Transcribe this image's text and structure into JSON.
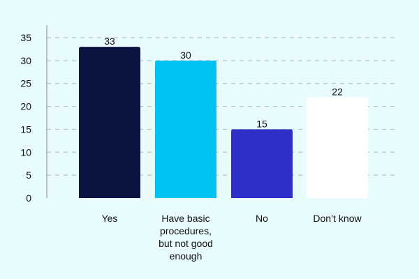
{
  "chart_data": {
    "type": "bar",
    "categories": [
      [
        "Yes"
      ],
      [
        "Have basic",
        "procedures,",
        "but not good",
        "enough"
      ],
      [
        "No"
      ],
      [
        "Don’t know"
      ]
    ],
    "values": [
      33,
      30,
      15,
      22
    ],
    "data_labels": [
      "33",
      "30",
      "15",
      "22"
    ],
    "y_ticks": [
      "0",
      "5",
      "10",
      "15",
      "20",
      "25",
      "30",
      "35"
    ],
    "ylim": [
      0,
      35
    ],
    "title": "",
    "xlabel": "",
    "ylabel": "",
    "grid": "dashed horizontal",
    "colors": [
      "#0b1340",
      "#00c3f3",
      "#2e2ec9",
      "#ffffff"
    ],
    "background": "#e8fbfd"
  }
}
